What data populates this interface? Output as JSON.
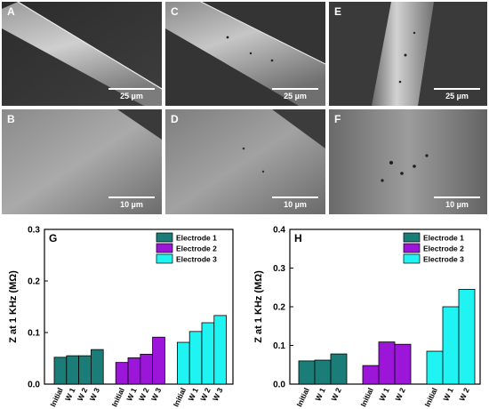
{
  "sem_panels": [
    {
      "letter": "A",
      "scale": "25 µm"
    },
    {
      "letter": "C",
      "scale": "25 µm"
    },
    {
      "letter": "E",
      "scale": "25 µm"
    },
    {
      "letter": "B",
      "scale": "10 µm"
    },
    {
      "letter": "D",
      "scale": "10 µm"
    },
    {
      "letter": "F",
      "scale": "10 µm"
    }
  ],
  "colors": {
    "electrode_1": "#1a7d78",
    "electrode_2": "#9b16d8",
    "electrode_3": "#1ff4f2"
  },
  "chart_data": [
    {
      "type": "bar",
      "panel_label": "G",
      "ylabel": "Z at 1 KHz (MΩ)",
      "ylim": [
        0,
        0.3
      ],
      "yticks": [
        "0.0",
        "0.1",
        "0.2",
        "0.3"
      ],
      "legend_position": "top-right",
      "series": [
        {
          "name": "Electrode 1",
          "color": "#1a7d78",
          "categories": [
            "Initial",
            "W 1",
            "W 2",
            "W 3"
          ],
          "values": [
            0.052,
            0.055,
            0.055,
            0.067
          ]
        },
        {
          "name": "Electrode 2",
          "color": "#9b16d8",
          "categories": [
            "Initial",
            "W 1",
            "W 2",
            "W 3"
          ],
          "values": [
            0.042,
            0.051,
            0.058,
            0.091
          ]
        },
        {
          "name": "Electrode 3",
          "color": "#1ff4f2",
          "categories": [
            "Initial",
            "W 1",
            "W 2",
            "W 3"
          ],
          "values": [
            0.081,
            0.102,
            0.119,
            0.133
          ]
        }
      ]
    },
    {
      "type": "bar",
      "panel_label": "H",
      "ylabel": "Z at 1 KHz (MΩ)",
      "ylim": [
        0,
        0.4
      ],
      "yticks": [
        "0.0",
        "0.1",
        "0.2",
        "0.3",
        "0.4"
      ],
      "legend_position": "top-right",
      "series": [
        {
          "name": "Electrode 1",
          "color": "#1a7d78",
          "categories": [
            "Initial",
            "W 1",
            "W 2"
          ],
          "values": [
            0.06,
            0.062,
            0.078
          ]
        },
        {
          "name": "Electrode 2",
          "color": "#9b16d8",
          "categories": [
            "Initial",
            "W 1",
            "W 2"
          ],
          "values": [
            0.048,
            0.109,
            0.103
          ]
        },
        {
          "name": "Electrode 3",
          "color": "#1ff4f2",
          "categories": [
            "Initial",
            "W 1",
            "W 2"
          ],
          "values": [
            0.085,
            0.2,
            0.245
          ]
        }
      ]
    }
  ]
}
